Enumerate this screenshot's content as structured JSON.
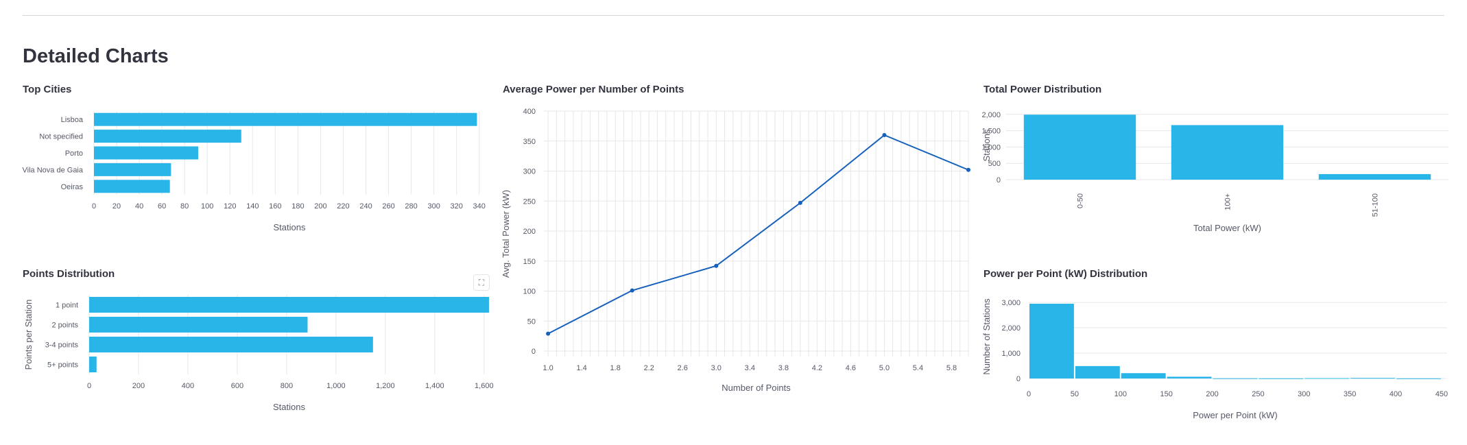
{
  "page": {
    "section_title": "Detailed Charts"
  },
  "colors": {
    "bar": "#29b5e8",
    "line": "#1560bd",
    "grid": "#e6e7ea"
  },
  "toolbar": {
    "expand_icon": "fullscreen-icon"
  },
  "chart_data": [
    {
      "id": "top-cities",
      "type": "bar",
      "orientation": "horizontal",
      "title": "Top Cities",
      "xlabel": "Stations",
      "ylabel": "",
      "categories": [
        "Lisboa",
        "Not specified",
        "Porto",
        "Vila Nova de Gaia",
        "Oeiras"
      ],
      "values": [
        338,
        130,
        92,
        68,
        67
      ],
      "xlim": [
        0,
        345
      ],
      "xticks": [
        0,
        20,
        40,
        60,
        80,
        100,
        120,
        140,
        160,
        180,
        200,
        220,
        240,
        260,
        280,
        300,
        320,
        340
      ],
      "grid": true
    },
    {
      "id": "avg-power",
      "type": "line",
      "title": "Average Power per Number of Points",
      "xlabel": "Number of Points",
      "ylabel": "Avg. Total Power (kW)",
      "x": [
        1,
        2,
        3,
        4,
        5,
        6
      ],
      "values": [
        29,
        101,
        142,
        247,
        360,
        302
      ],
      "xlim": [
        0.95,
        6.0
      ],
      "ylim": [
        0,
        400
      ],
      "xticks": [
        1.0,
        1.4,
        1.8,
        2.2,
        2.6,
        3.0,
        3.4,
        3.8,
        4.2,
        4.6,
        5.0,
        5.4,
        5.8
      ],
      "yticks": [
        0,
        50,
        100,
        150,
        200,
        250,
        300,
        350,
        400
      ],
      "grid": true
    },
    {
      "id": "total-power",
      "type": "bar",
      "orientation": "vertical",
      "title": "Total Power Distribution",
      "xlabel": "Total Power (kW)",
      "ylabel": "Stations",
      "categories": [
        "0-50",
        "100+",
        "51-100"
      ],
      "values": [
        1990,
        1670,
        170
      ],
      "ylim": [
        0,
        2100
      ],
      "yticks": [
        0,
        500,
        1000,
        1500,
        2000
      ],
      "grid": true
    },
    {
      "id": "points-dist",
      "type": "bar",
      "orientation": "horizontal",
      "title": "Points Distribution",
      "xlabel": "Stations",
      "ylabel": "Points per Station",
      "categories": [
        "1 point",
        "2 points",
        "3-4 points",
        "5+ points"
      ],
      "values": [
        1620,
        885,
        1150,
        30
      ],
      "xlim": [
        0,
        1620
      ],
      "xticks": [
        0,
        200,
        400,
        600,
        800,
        1000,
        1200,
        1400,
        1600
      ],
      "grid": true
    },
    {
      "id": "power-per-point",
      "type": "histogram",
      "title": "Power per Point (kW) Distribution",
      "xlabel": "Power per Point (kW)",
      "ylabel": "Number of Stations",
      "bins": [
        [
          0,
          50
        ],
        [
          50,
          100
        ],
        [
          100,
          150
        ],
        [
          150,
          200
        ],
        [
          200,
          250
        ],
        [
          250,
          300
        ],
        [
          300,
          350
        ],
        [
          350,
          400
        ],
        [
          400,
          450
        ]
      ],
      "values": [
        2950,
        490,
        210,
        70,
        8,
        6,
        14,
        22,
        5
      ],
      "xlim": [
        0,
        450
      ],
      "ylim": [
        0,
        3300
      ],
      "xticks": [
        0,
        50,
        100,
        150,
        200,
        250,
        300,
        350,
        400,
        450
      ],
      "yticks": [
        0,
        1000,
        2000,
        3000
      ],
      "grid": true
    }
  ]
}
